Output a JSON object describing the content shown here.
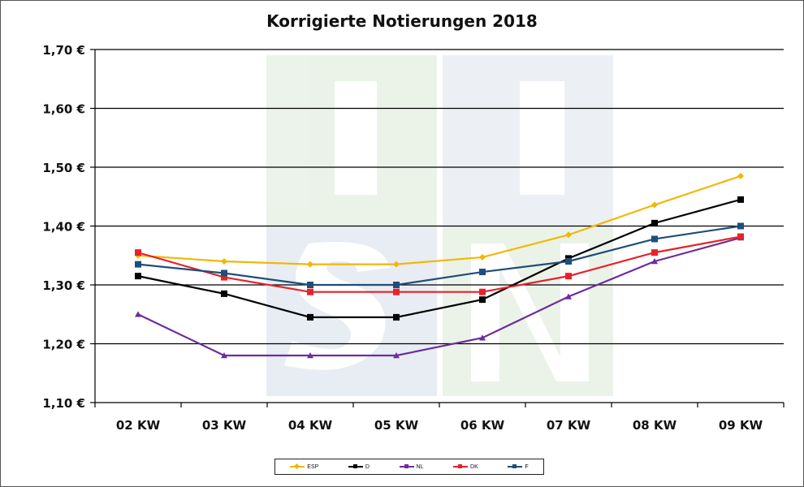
{
  "chart_data": {
    "type": "line",
    "title": "Korrigierte Notierungen 2018",
    "categories": [
      "02 KW",
      "03 KW",
      "04 KW",
      "05 KW",
      "06 KW",
      "07 KW",
      "08 KW",
      "09 KW"
    ],
    "y_ticks": [
      "1,70 €",
      "1,60 €",
      "1,50 €",
      "1,40 €",
      "1,30 €",
      "1,20 €",
      "1,10 €"
    ],
    "ylim": [
      1.1,
      1.7
    ],
    "grid": true,
    "legend_position": "bottom",
    "series": [
      {
        "name": "ESP",
        "color": "#F2B705",
        "marker": "diamond",
        "values": [
          1.35,
          1.34,
          1.335,
          1.335,
          1.347,
          1.385,
          1.436,
          1.485
        ]
      },
      {
        "name": "D",
        "color": "#000000",
        "marker": "square",
        "values": [
          1.315,
          1.285,
          1.245,
          1.245,
          1.275,
          1.345,
          1.405,
          1.445
        ]
      },
      {
        "name": "NL",
        "color": "#6E2C9E",
        "marker": "triangle",
        "values": [
          1.25,
          1.18,
          1.18,
          1.18,
          1.21,
          1.28,
          1.34,
          1.38
        ]
      },
      {
        "name": "DK",
        "color": "#E8212B",
        "marker": "square",
        "values": [
          1.355,
          1.313,
          1.288,
          1.288,
          1.288,
          1.315,
          1.355,
          1.382
        ]
      },
      {
        "name": "F",
        "color": "#1F4E79",
        "marker": "square",
        "values": [
          1.335,
          1.32,
          1.3,
          1.3,
          1.322,
          1.34,
          1.378,
          1.4
        ]
      }
    ]
  }
}
